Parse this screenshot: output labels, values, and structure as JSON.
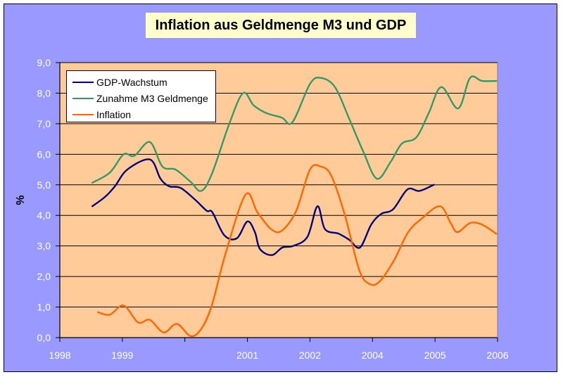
{
  "chart_data": {
    "type": "line",
    "title": "Inflation aus Geldmenge M3 und GDP",
    "xlabel": "",
    "ylabel": "%",
    "categories": [
      "1998",
      "1999",
      "2001",
      "2002",
      "2004",
      "2005",
      "2006"
    ],
    "x_category_positions": [
      0,
      1,
      2,
      3,
      4,
      5,
      6
    ],
    "xlim": [
      0,
      7
    ],
    "ylim": [
      0,
      9
    ],
    "y_ticks": [
      "0,0",
      "1,0",
      "2,0",
      "3,0",
      "4,0",
      "5,0",
      "6,0",
      "7,0",
      "8,0",
      "9,0"
    ],
    "y_tick_values": [
      0,
      1,
      2,
      3,
      4,
      5,
      6,
      7,
      8,
      9
    ],
    "grid": true,
    "legend_position": "top-left",
    "colors": {
      "chart_background": "#9999ff",
      "plot_background": "#ffcc99",
      "title_background": "#ffffcc",
      "tick_label": "#ffffff"
    },
    "series": [
      {
        "name": "GDP-Wachstum",
        "color": "#000080",
        "x": [
          0.52,
          0.72,
          0.88,
          1.08,
          1.44,
          1.61,
          1.75,
          1.93,
          2.17,
          2.35,
          2.44,
          2.63,
          2.83,
          3.0,
          3.12,
          3.2,
          3.39,
          3.56,
          3.73,
          3.96,
          4.12,
          4.24,
          4.46,
          4.63,
          4.8,
          4.98,
          5.14,
          5.33,
          5.56,
          5.75,
          5.98
        ],
        "y": [
          4.3,
          4.6,
          4.95,
          5.5,
          5.83,
          5.2,
          4.95,
          4.9,
          4.5,
          4.15,
          4.1,
          3.35,
          3.25,
          3.8,
          3.45,
          2.9,
          2.7,
          2.95,
          3.0,
          3.3,
          4.3,
          3.55,
          3.4,
          3.2,
          2.95,
          3.7,
          4.05,
          4.2,
          4.85,
          4.8,
          5.0
        ]
      },
      {
        "name": "Zunahme M3 Geldmenge",
        "color": "#339966",
        "x": [
          0.52,
          0.8,
          1.02,
          1.19,
          1.44,
          1.64,
          1.85,
          2.09,
          2.26,
          2.43,
          2.71,
          2.93,
          3.1,
          3.3,
          3.55,
          3.72,
          4.0,
          4.17,
          4.4,
          4.63,
          4.85,
          5.07,
          5.29,
          5.47,
          5.7,
          5.9,
          6.1,
          6.37,
          6.56,
          6.75,
          6.98
        ],
        "y": [
          5.07,
          5.4,
          6.0,
          5.95,
          6.4,
          5.6,
          5.5,
          5.1,
          4.8,
          5.35,
          7.0,
          8.0,
          7.6,
          7.35,
          7.2,
          7.05,
          8.3,
          8.5,
          8.2,
          7.15,
          6.1,
          5.2,
          5.75,
          6.35,
          6.55,
          7.35,
          8.2,
          7.5,
          8.5,
          8.4,
          8.4
        ]
      },
      {
        "name": "Inflation",
        "color": "#ff6600",
        "x": [
          0.61,
          0.8,
          1.02,
          1.25,
          1.44,
          1.66,
          1.87,
          2.09,
          2.26,
          2.43,
          2.65,
          2.97,
          3.16,
          3.38,
          3.55,
          3.78,
          4.0,
          4.17,
          4.34,
          4.56,
          4.79,
          4.96,
          5.12,
          5.35,
          5.57,
          5.79,
          6.08,
          6.25,
          6.36,
          6.56,
          6.75,
          6.98
        ],
        "y": [
          0.83,
          0.75,
          1.05,
          0.5,
          0.58,
          0.17,
          0.45,
          0.05,
          0.28,
          1.05,
          2.75,
          4.68,
          4.1,
          3.55,
          3.5,
          4.15,
          5.5,
          5.6,
          5.3,
          4.0,
          2.2,
          1.75,
          1.85,
          2.55,
          3.45,
          3.9,
          4.3,
          3.75,
          3.45,
          3.75,
          3.7,
          3.4
        ]
      }
    ]
  }
}
